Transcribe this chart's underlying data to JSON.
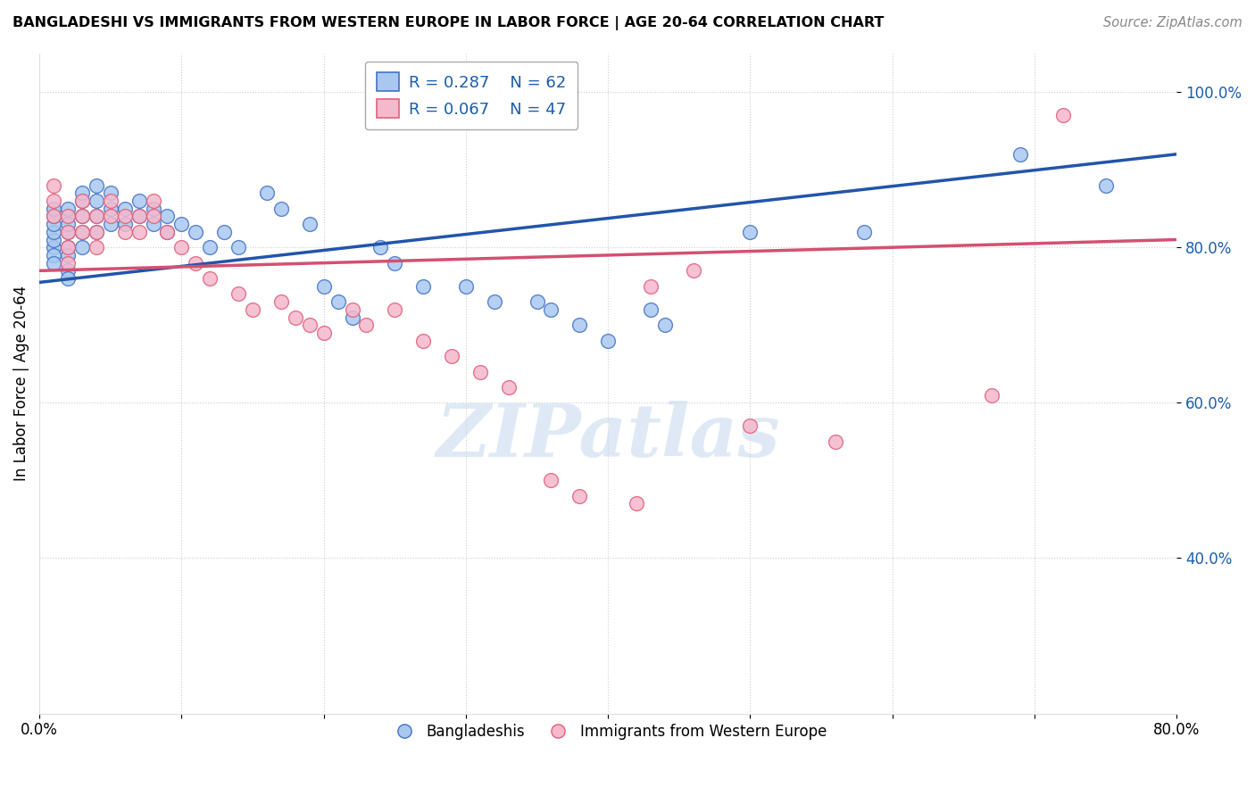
{
  "title": "BANGLADESHI VS IMMIGRANTS FROM WESTERN EUROPE IN LABOR FORCE | AGE 20-64 CORRELATION CHART",
  "source": "Source: ZipAtlas.com",
  "ylabel": "In Labor Force | Age 20-64",
  "xlim": [
    0.0,
    0.8
  ],
  "ylim": [
    0.2,
    1.05
  ],
  "xticks": [
    0.0,
    0.1,
    0.2,
    0.3,
    0.4,
    0.5,
    0.6,
    0.7,
    0.8
  ],
  "yticks": [
    0.4,
    0.6,
    0.8,
    1.0
  ],
  "ytick_labels": [
    "40.0%",
    "60.0%",
    "80.0%",
    "100.0%"
  ],
  "blue_R": 0.287,
  "blue_N": 62,
  "pink_R": 0.067,
  "pink_N": 47,
  "blue_color": "#A8C8F0",
  "pink_color": "#F5B8CC",
  "blue_edge_color": "#4472C4",
  "pink_edge_color": "#E0607A",
  "blue_line_color": "#2255AA",
  "pink_line_color": "#D45070",
  "legend_text_color": "#1A5DAB",
  "watermark": "ZIPatlas",
  "blue_line_x0": 0.0,
  "blue_line_y0": 0.755,
  "blue_line_x1": 0.8,
  "blue_line_y1": 0.92,
  "pink_line_x0": 0.0,
  "pink_line_y0": 0.77,
  "pink_line_x1": 0.8,
  "pink_line_y1": 0.81,
  "blue_scatter_x": [
    0.01,
    0.01,
    0.01,
    0.01,
    0.01,
    0.01,
    0.01,
    0.01,
    0.02,
    0.02,
    0.02,
    0.02,
    0.02,
    0.02,
    0.02,
    0.02,
    0.03,
    0.03,
    0.03,
    0.03,
    0.03,
    0.04,
    0.04,
    0.04,
    0.04,
    0.05,
    0.05,
    0.05,
    0.06,
    0.06,
    0.07,
    0.07,
    0.08,
    0.08,
    0.09,
    0.09,
    0.1,
    0.11,
    0.12,
    0.13,
    0.14,
    0.16,
    0.17,
    0.19,
    0.2,
    0.21,
    0.22,
    0.24,
    0.25,
    0.27,
    0.3,
    0.32,
    0.35,
    0.36,
    0.38,
    0.4,
    0.43,
    0.44,
    0.5,
    0.58,
    0.69,
    0.75
  ],
  "blue_scatter_y": [
    0.8,
    0.81,
    0.82,
    0.83,
    0.84,
    0.85,
    0.79,
    0.78,
    0.8,
    0.82,
    0.84,
    0.85,
    0.83,
    0.79,
    0.77,
    0.76,
    0.86,
    0.84,
    0.82,
    0.8,
    0.87,
    0.88,
    0.86,
    0.84,
    0.82,
    0.87,
    0.85,
    0.83,
    0.85,
    0.83,
    0.86,
    0.84,
    0.85,
    0.83,
    0.84,
    0.82,
    0.83,
    0.82,
    0.8,
    0.82,
    0.8,
    0.87,
    0.85,
    0.83,
    0.75,
    0.73,
    0.71,
    0.8,
    0.78,
    0.75,
    0.75,
    0.73,
    0.73,
    0.72,
    0.7,
    0.68,
    0.72,
    0.7,
    0.82,
    0.82,
    0.92,
    0.88
  ],
  "pink_scatter_x": [
    0.01,
    0.01,
    0.01,
    0.02,
    0.02,
    0.02,
    0.02,
    0.03,
    0.03,
    0.03,
    0.04,
    0.04,
    0.04,
    0.05,
    0.05,
    0.06,
    0.06,
    0.07,
    0.07,
    0.08,
    0.08,
    0.09,
    0.1,
    0.11,
    0.12,
    0.14,
    0.15,
    0.17,
    0.18,
    0.19,
    0.2,
    0.22,
    0.23,
    0.25,
    0.27,
    0.29,
    0.31,
    0.33,
    0.36,
    0.38,
    0.42,
    0.43,
    0.46,
    0.5,
    0.56,
    0.67,
    0.72
  ],
  "pink_scatter_y": [
    0.84,
    0.86,
    0.88,
    0.84,
    0.82,
    0.8,
    0.78,
    0.86,
    0.84,
    0.82,
    0.84,
    0.82,
    0.8,
    0.86,
    0.84,
    0.84,
    0.82,
    0.84,
    0.82,
    0.86,
    0.84,
    0.82,
    0.8,
    0.78,
    0.76,
    0.74,
    0.72,
    0.73,
    0.71,
    0.7,
    0.69,
    0.72,
    0.7,
    0.72,
    0.68,
    0.66,
    0.64,
    0.62,
    0.5,
    0.48,
    0.47,
    0.75,
    0.77,
    0.57,
    0.55,
    0.61,
    0.97
  ]
}
